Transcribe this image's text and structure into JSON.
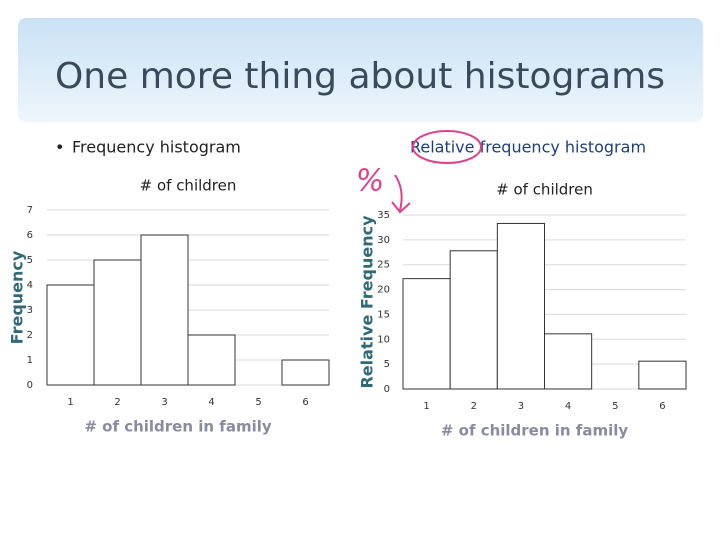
{
  "slide": {
    "title": "One more thing about histograms",
    "bullet": "Frequency histogram",
    "heading": "Relative frequency histogram",
    "annotation": "%"
  },
  "chart_data": [
    {
      "type": "bar",
      "title": "# of children",
      "ylabel": "Frequency",
      "xlabel": "# of children in family",
      "categories": [
        "1",
        "2",
        "3",
        "4",
        "5",
        "6"
      ],
      "values": [
        4,
        5,
        6,
        2,
        0,
        1
      ],
      "ylim": [
        0,
        7
      ],
      "yticks": [
        0,
        1,
        2,
        3,
        4,
        5,
        6,
        7
      ],
      "color": "#ffffff",
      "grid": true
    },
    {
      "type": "bar",
      "title": "# of children",
      "ylabel": "Relative Frequency",
      "xlabel": "# of children in family",
      "categories": [
        "1",
        "2",
        "3",
        "4",
        "5",
        "6"
      ],
      "values": [
        22.2,
        27.8,
        33.3,
        11.1,
        0,
        5.6
      ],
      "ylim": [
        0,
        35
      ],
      "yticks": [
        0,
        5,
        10,
        15,
        20,
        25,
        30,
        35
      ],
      "color": "#ffffff",
      "grid": true
    }
  ]
}
